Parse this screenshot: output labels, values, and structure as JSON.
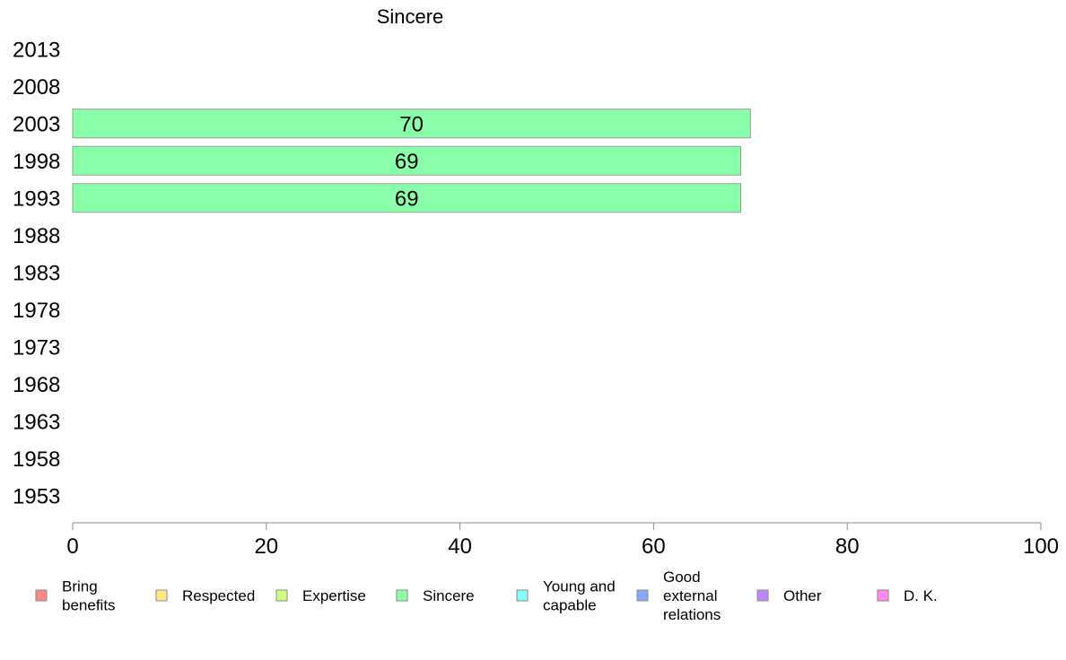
{
  "chart_data": {
    "type": "bar",
    "orientation": "horizontal",
    "title": "Sincere",
    "categories": [
      "2013",
      "2008",
      "2003",
      "1998",
      "1993",
      "1988",
      "1983",
      "1978",
      "1973",
      "1968",
      "1963",
      "1958",
      "1953"
    ],
    "series": [
      {
        "name": "Sincere",
        "color": "#88ffa8",
        "values": [
          null,
          null,
          70,
          69,
          69,
          null,
          null,
          null,
          null,
          null,
          null,
          null,
          null
        ],
        "labels": [
          "",
          "",
          "70",
          "69",
          "69",
          "",
          "",
          "",
          "",
          "",
          "",
          "",
          ""
        ]
      }
    ],
    "xlim": [
      0,
      100
    ],
    "xticks": [
      "0",
      "20",
      "40",
      "60",
      "80",
      "100"
    ],
    "grid": false,
    "legend_position": "bottom",
    "legend": [
      {
        "label": "Bring\nbenefits",
        "color": "#ff8888"
      },
      {
        "label": "Respected",
        "color": "#ffe888"
      },
      {
        "label": "Expertise",
        "color": "#d0ff88"
      },
      {
        "label": "Sincere",
        "color": "#88ffa8"
      },
      {
        "label": "Young and\ncapable",
        "color": "#88ffff"
      },
      {
        "label": "Good\nexternal\nrelations",
        "color": "#88a8ff"
      },
      {
        "label": "Other",
        "color": "#c088ff"
      },
      {
        "label": "D. K.",
        "color": "#ff88f0"
      }
    ]
  }
}
